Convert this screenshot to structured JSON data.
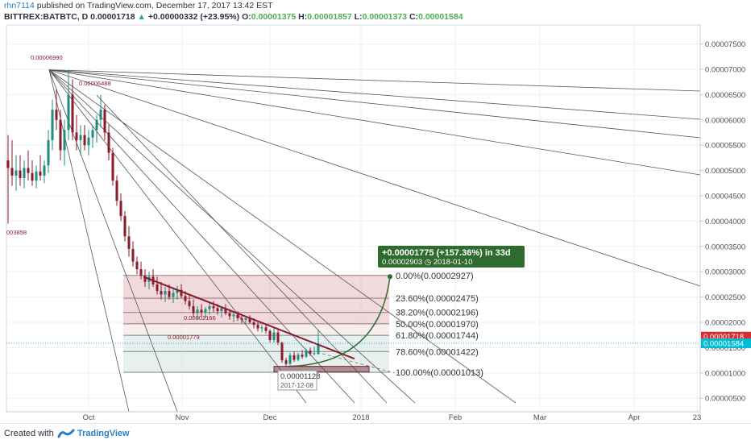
{
  "header": {
    "author": "rhn7114",
    "published_text": "published on TradingView.com, December 17, 2017 13:42 EST",
    "symbol": "BITTREX:BATBTC, D",
    "last": "0.00001718",
    "change": "+0.00000332 (+23.95%)",
    "o_label": "O:",
    "o_value": "0.00001375",
    "h_label": "H:",
    "h_value": "0.00001857",
    "l_label": "L:",
    "l_value": "0.00001373",
    "c_label": "C:",
    "c_value": "0.00001584"
  },
  "footer": {
    "created_with": "Created with",
    "brand": "TradingView"
  },
  "chart_data": {
    "type": "candlestick",
    "symbol": "BITTREX:BATBTC",
    "interval": "D",
    "x_ticks": [
      "Oct",
      "Nov",
      "Dec",
      "2018",
      "Feb",
      "Mar",
      "Apr",
      "23"
    ],
    "y_ticks": [
      "0.00000500",
      "0.00001000",
      "0.00001500",
      "0.00002000",
      "0.00002500",
      "0.00003000",
      "0.00003500",
      "0.00004000",
      "0.00004500",
      "0.00005000",
      "0.00005500",
      "0.00006000",
      "0.00006500",
      "0.00007000",
      "0.00007500"
    ],
    "ylim": [
      3e-06,
      7.8e-05
    ],
    "grid": true,
    "price_badges": [
      {
        "label": "0.00001718",
        "value": 1.718e-05,
        "color": "#d32f2f"
      },
      {
        "label": "0.00001584",
        "value": 1.584e-05,
        "color": "#00bcd4"
      }
    ],
    "annotations": {
      "high_label": "0.00006990",
      "high2_label": "0.00006488",
      "left_label": "003858",
      "mid_label1": "0.00002166",
      "mid_label2": "0.00001779",
      "low_label": "0.00001128",
      "low_date": "2017-12-08",
      "projection_title": "+0.00001775 (+157.36%) in 33d",
      "projection_price": "0.00002903",
      "projection_date": "2018-01-10"
    },
    "fib_levels": [
      {
        "label": "0.00%(0.00002927)",
        "value": 2.927e-05
      },
      {
        "label": "23.60%(0.00002475)",
        "value": 2.475e-05
      },
      {
        "label": "38.20%(0.00002196)",
        "value": 2.196e-05
      },
      {
        "label": "50.00%(0.00001970)",
        "value": 1.97e-05
      },
      {
        "label": "61.80%(0.00001744)",
        "value": 1.744e-05
      },
      {
        "label": "78.60%(0.00001422)",
        "value": 1.422e-05
      },
      {
        "label": "100.00%(0.00001013)",
        "value": 1.013e-05
      }
    ],
    "candles": [
      {
        "o": 5.2e-05,
        "h": 5.7e-05,
        "l": 3.95e-05,
        "c": 5.05e-05
      },
      {
        "o": 5.05e-05,
        "h": 5.6e-05,
        "l": 4.7e-05,
        "c": 4.9e-05
      },
      {
        "o": 4.9e-05,
        "h": 5.3e-05,
        "l": 4.6e-05,
        "c": 5e-05
      },
      {
        "o": 5e-05,
        "h": 5.3e-05,
        "l": 4.7e-05,
        "c": 4.85e-05
      },
      {
        "o": 4.85e-05,
        "h": 5.2e-05,
        "l": 4.65e-05,
        "c": 5.05e-05
      },
      {
        "o": 5.05e-05,
        "h": 5.4e-05,
        "l": 4.8e-05,
        "c": 4.95e-05
      },
      {
        "o": 4.95e-05,
        "h": 5.2e-05,
        "l": 4.7e-05,
        "c": 4.8e-05
      },
      {
        "o": 4.8e-05,
        "h": 5.1e-05,
        "l": 4.65e-05,
        "c": 4.98e-05
      },
      {
        "o": 4.98e-05,
        "h": 5.3e-05,
        "l": 4.8e-05,
        "c": 4.9e-05
      },
      {
        "o": 4.9e-05,
        "h": 5.2e-05,
        "l": 4.75e-05,
        "c": 5.1e-05
      },
      {
        "o": 5.1e-05,
        "h": 5.8e-05,
        "l": 4.95e-05,
        "c": 5.6e-05
      },
      {
        "o": 5.6e-05,
        "h": 6.4e-05,
        "l": 5.4e-05,
        "c": 6.2e-05
      },
      {
        "o": 6.2e-05,
        "h": 6.6e-05,
        "l": 5.8e-05,
        "c": 6e-05
      },
      {
        "o": 6e-05,
        "h": 6.2e-05,
        "l": 5.2e-05,
        "c": 5.4e-05
      },
      {
        "o": 5.4e-05,
        "h": 6e-05,
        "l": 5.1e-05,
        "c": 5.8e-05
      },
      {
        "o": 5.8e-05,
        "h": 6.99e-05,
        "l": 5.6e-05,
        "c": 6.5e-05
      },
      {
        "o": 6.5e-05,
        "h": 6.8e-05,
        "l": 5.6e-05,
        "c": 5.75e-05
      },
      {
        "o": 5.75e-05,
        "h": 6.1e-05,
        "l": 5.4e-05,
        "c": 5.6e-05
      },
      {
        "o": 5.6e-05,
        "h": 5.9e-05,
        "l": 5.3e-05,
        "c": 5.7e-05
      },
      {
        "o": 5.7e-05,
        "h": 5.9e-05,
        "l": 5.4e-05,
        "c": 5.5e-05
      },
      {
        "o": 5.5e-05,
        "h": 5.8e-05,
        "l": 5.3e-05,
        "c": 5.65e-05
      },
      {
        "o": 5.65e-05,
        "h": 5.9e-05,
        "l": 5.45e-05,
        "c": 5.8e-05
      },
      {
        "o": 5.8e-05,
        "h": 6.1e-05,
        "l": 5.55e-05,
        "c": 6e-05
      },
      {
        "o": 6e-05,
        "h": 6.49e-05,
        "l": 5.85e-05,
        "c": 6.2e-05
      },
      {
        "o": 6.2e-05,
        "h": 6.3e-05,
        "l": 5.6e-05,
        "c": 5.75e-05
      },
      {
        "o": 5.75e-05,
        "h": 5.9e-05,
        "l": 5.2e-05,
        "c": 5.35e-05
      },
      {
        "o": 5.35e-05,
        "h": 5.45e-05,
        "l": 4.7e-05,
        "c": 4.8e-05
      },
      {
        "o": 4.8e-05,
        "h": 4.9e-05,
        "l": 4.3e-05,
        "c": 4.4e-05
      },
      {
        "o": 4.4e-05,
        "h": 4.55e-05,
        "l": 4e-05,
        "c": 4.1e-05
      },
      {
        "o": 4.1e-05,
        "h": 4.2e-05,
        "l": 3.6e-05,
        "c": 3.7e-05
      },
      {
        "o": 3.7e-05,
        "h": 3.9e-05,
        "l": 3.3e-05,
        "c": 3.45e-05
      },
      {
        "o": 3.45e-05,
        "h": 3.6e-05,
        "l": 3.1e-05,
        "c": 3.2e-05
      },
      {
        "o": 3.2e-05,
        "h": 3.3e-05,
        "l": 2.95e-05,
        "c": 3.05e-05
      },
      {
        "o": 3.05e-05,
        "h": 3.2e-05,
        "l": 2.85e-05,
        "c": 2.92e-05
      },
      {
        "o": 2.92e-05,
        "h": 3.05e-05,
        "l": 2.7e-05,
        "c": 2.8e-05
      },
      {
        "o": 2.8e-05,
        "h": 3e-05,
        "l": 2.65e-05,
        "c": 2.9e-05
      },
      {
        "o": 2.9e-05,
        "h": 3.05e-05,
        "l": 2.7e-05,
        "c": 2.75e-05
      },
      {
        "o": 2.75e-05,
        "h": 2.9e-05,
        "l": 2.55e-05,
        "c": 2.62e-05
      },
      {
        "o": 2.62e-05,
        "h": 2.8e-05,
        "l": 2.45e-05,
        "c": 2.55e-05
      },
      {
        "o": 2.55e-05,
        "h": 2.7e-05,
        "l": 2.4e-05,
        "c": 2.62e-05
      },
      {
        "o": 2.62e-05,
        "h": 2.75e-05,
        "l": 2.45e-05,
        "c": 2.5e-05
      },
      {
        "o": 2.5e-05,
        "h": 2.65e-05,
        "l": 2.38e-05,
        "c": 2.58e-05
      },
      {
        "o": 2.58e-05,
        "h": 2.72e-05,
        "l": 2.45e-05,
        "c": 2.64e-05
      },
      {
        "o": 2.64e-05,
        "h": 2.75e-05,
        "l": 2.48e-05,
        "c": 2.52e-05
      },
      {
        "o": 2.52e-05,
        "h": 2.62e-05,
        "l": 2.35e-05,
        "c": 2.42e-05
      },
      {
        "o": 2.42e-05,
        "h": 2.55e-05,
        "l": 2.25e-05,
        "c": 2.32e-05
      },
      {
        "o": 2.32e-05,
        "h": 2.45e-05,
        "l": 2.1e-05,
        "c": 2.18e-05
      },
      {
        "o": 2.18e-05,
        "h": 2.32e-05,
        "l": 2.05e-05,
        "c": 2.25e-05
      },
      {
        "o": 2.25e-05,
        "h": 2.36e-05,
        "l": 2.12e-05,
        "c": 2.2e-05
      },
      {
        "o": 2.2e-05,
        "h": 2.3e-05,
        "l": 2.08e-05,
        "c": 2.26e-05
      },
      {
        "o": 2.26e-05,
        "h": 2.38e-05,
        "l": 2.15e-05,
        "c": 2.32e-05
      },
      {
        "o": 2.32e-05,
        "h": 2.42e-05,
        "l": 2.2e-05,
        "c": 2.28e-05
      },
      {
        "o": 2.28e-05,
        "h": 2.36e-05,
        "l": 2.15e-05,
        "c": 2.22e-05
      },
      {
        "o": 2.22e-05,
        "h": 2.32e-05,
        "l": 2.1e-05,
        "c": 2.28e-05
      },
      {
        "o": 2.28e-05,
        "h": 2.36e-05,
        "l": 2.14e-05,
        "c": 2.18e-05
      },
      {
        "o": 2.18e-05,
        "h": 2.26e-05,
        "l": 2.05e-05,
        "c": 2.12e-05
      },
      {
        "o": 2.12e-05,
        "h": 2.22e-05,
        "l": 2e-05,
        "c": 2.15e-05
      },
      {
        "o": 2.15e-05,
        "h": 2.22e-05,
        "l": 2.03e-05,
        "c": 2.08e-05
      },
      {
        "o": 2.08e-05,
        "h": 2.15e-05,
        "l": 1.98e-05,
        "c": 2.05e-05
      },
      {
        "o": 2.05e-05,
        "h": 2.12e-05,
        "l": 1.96e-05,
        "c": 2.08e-05
      },
      {
        "o": 2.08e-05,
        "h": 2.14e-05,
        "l": 1.97e-05,
        "c": 2e-05
      },
      {
        "o": 2e-05,
        "h": 2.08e-05,
        "l": 1.88e-05,
        "c": 1.95e-05
      },
      {
        "o": 1.95e-05,
        "h": 2e-05,
        "l": 1.82e-05,
        "c": 1.88e-05
      },
      {
        "o": 1.88e-05,
        "h": 1.95e-05,
        "l": 1.8e-05,
        "c": 1.9e-05
      },
      {
        "o": 1.9e-05,
        "h": 1.95e-05,
        "l": 1.78e-05,
        "c": 1.83e-05
      },
      {
        "o": 1.83e-05,
        "h": 1.86e-05,
        "l": 1.6e-05,
        "c": 1.65e-05
      },
      {
        "o": 1.65e-05,
        "h": 1.9e-05,
        "l": 1.6e-05,
        "c": 1.8e-05
      },
      {
        "o": 1.8e-05,
        "h": 1.85e-05,
        "l": 1.55e-05,
        "c": 1.6e-05
      },
      {
        "o": 1.6e-05,
        "h": 1.62e-05,
        "l": 1.2e-05,
        "c": 1.25e-05
      },
      {
        "o": 1.25e-05,
        "h": 1.3e-05,
        "l": 1.13e-05,
        "c": 1.18e-05
      },
      {
        "o": 1.18e-05,
        "h": 1.4e-05,
        "l": 1.15e-05,
        "c": 1.35e-05
      },
      {
        "o": 1.35e-05,
        "h": 1.42e-05,
        "l": 1.22e-05,
        "c": 1.26e-05
      },
      {
        "o": 1.26e-05,
        "h": 1.4e-05,
        "l": 1.23e-05,
        "c": 1.36e-05
      },
      {
        "o": 1.36e-05,
        "h": 1.45e-05,
        "l": 1.28e-05,
        "c": 1.32e-05
      },
      {
        "o": 1.32e-05,
        "h": 1.48e-05,
        "l": 1.3e-05,
        "c": 1.44e-05
      },
      {
        "o": 1.44e-05,
        "h": 1.5e-05,
        "l": 1.34e-05,
        "c": 1.38e-05
      },
      {
        "o": 1.38e-05,
        "h": 1.52e-05,
        "l": 1.35e-05,
        "c": 1.39e-05
      },
      {
        "o": 1.37e-05,
        "h": 1.86e-05,
        "l": 1.37e-05,
        "c": 1.58e-05
      }
    ]
  }
}
